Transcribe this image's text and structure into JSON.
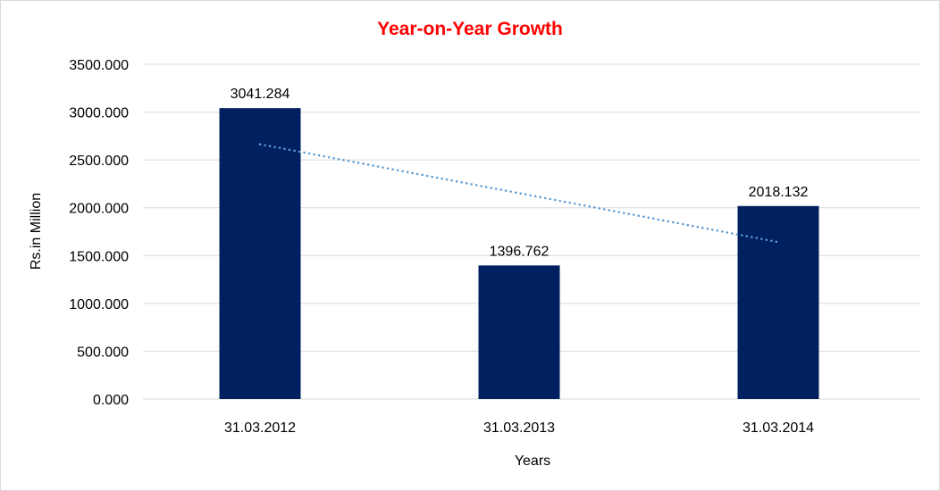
{
  "chart_data": {
    "type": "bar",
    "title": "Year-on-Year Growth",
    "xlabel": "Years",
    "ylabel": "Rs.in Million",
    "categories": [
      "31.03.2012",
      "31.03.2013",
      "31.03.2014"
    ],
    "values": [
      3041.284,
      1396.762,
      2018.132
    ],
    "data_labels": [
      "3041.284",
      "1396.762",
      "2018.132"
    ],
    "ylim": [
      0,
      3500
    ],
    "yticks": [
      0,
      500,
      1000,
      1500,
      2000,
      2500,
      3000,
      3500
    ],
    "ytick_labels": [
      "0.000",
      "500.000",
      "1000.000",
      "1500.000",
      "2000.000",
      "2500.000",
      "3000.000",
      "3500.000"
    ],
    "grid": true,
    "legend": "none",
    "trendline": {
      "type": "linear",
      "style": "dotted"
    },
    "colors": {
      "bar": "#002060",
      "trendline": "#5b9bd5",
      "title": "#ff0000",
      "grid": "#d9d9d9"
    }
  }
}
